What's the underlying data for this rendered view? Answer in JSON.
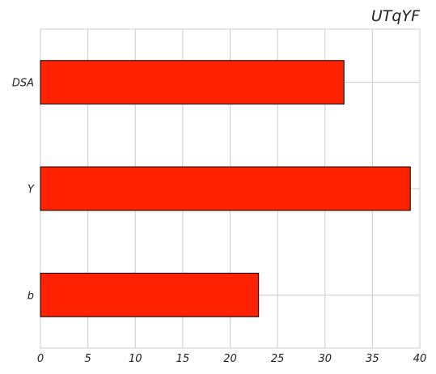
{
  "chart_data": {
    "type": "bar",
    "orientation": "horizontal",
    "title": "UTqYF",
    "categories": [
      "DSA",
      "Y",
      "b"
    ],
    "values": [
      32,
      39,
      23
    ],
    "xlabel": "",
    "ylabel": "",
    "xlim": [
      0,
      40
    ],
    "xticks": [
      0,
      5,
      10,
      15,
      20,
      25,
      30,
      35,
      40
    ],
    "grid": true,
    "bar_color": "#ff2200",
    "edge_color": "#000000"
  }
}
